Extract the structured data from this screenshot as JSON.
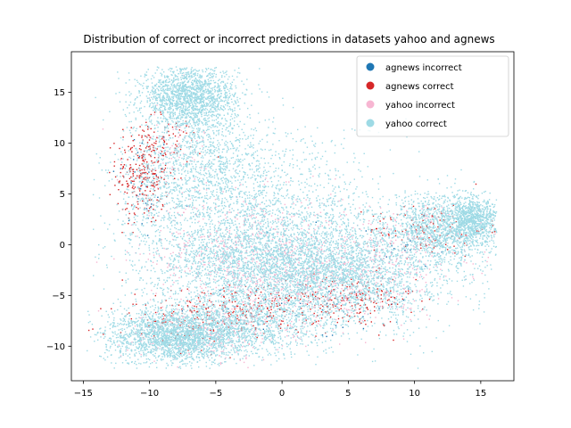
{
  "chart_data": {
    "type": "scatter",
    "title": "Distribution of correct or incorrect predictions in datasets yahoo and agnews",
    "xlabel": "",
    "ylabel": "",
    "xlim": [
      -15.9,
      17.5
    ],
    "ylim": [
      -13.4,
      19.0
    ],
    "xticks": [
      -15,
      -10,
      -5,
      0,
      5,
      10,
      15
    ],
    "yticks": [
      -10,
      -5,
      0,
      5,
      10,
      15
    ],
    "grid": false,
    "legend_position": "top-right",
    "series": [
      {
        "name": "agnews incorrect",
        "color": "#1f77b4",
        "clusters": [
          {
            "cx": -10.5,
            "cy": 6.0,
            "sx": 1.2,
            "sy": 3.0,
            "n": 35
          },
          {
            "cx": 2.0,
            "cy": -6.5,
            "sx": 5.0,
            "sy": 1.5,
            "n": 45
          },
          {
            "cx": 9.0,
            "cy": 0.5,
            "sx": 2.5,
            "sy": 1.5,
            "n": 20
          }
        ]
      },
      {
        "name": "agnews correct",
        "color": "#d62728",
        "clusters": [
          {
            "cx": -10.5,
            "cy": 7.0,
            "sx": 1.0,
            "sy": 2.5,
            "n": 260
          },
          {
            "cx": -9.0,
            "cy": 10.0,
            "sx": 1.5,
            "sy": 1.2,
            "n": 60
          },
          {
            "cx": -2.5,
            "cy": -6.5,
            "sx": 2.8,
            "sy": 1.2,
            "n": 230
          },
          {
            "cx": 5.0,
            "cy": -5.5,
            "sx": 2.5,
            "sy": 1.3,
            "n": 200
          },
          {
            "cx": 11.0,
            "cy": 1.5,
            "sx": 2.2,
            "sy": 1.3,
            "n": 120
          },
          {
            "cx": -8.5,
            "cy": -8.0,
            "sx": 2.2,
            "sy": 1.5,
            "n": 80
          }
        ]
      },
      {
        "name": "yahoo incorrect",
        "color": "#f7b6d2",
        "clusters": [
          {
            "cx": -2.0,
            "cy": -1.0,
            "sx": 4.0,
            "sy": 3.0,
            "n": 700
          },
          {
            "cx": 4.0,
            "cy": -4.0,
            "sx": 4.0,
            "sy": 2.0,
            "n": 400
          },
          {
            "cx": -6.0,
            "cy": -9.0,
            "sx": 3.0,
            "sy": 1.2,
            "n": 250
          },
          {
            "cx": 9.0,
            "cy": 0.0,
            "sx": 3.0,
            "sy": 1.8,
            "n": 200
          },
          {
            "cx": -8.0,
            "cy": 9.0,
            "sx": 2.0,
            "sy": 3.0,
            "n": 80
          }
        ]
      },
      {
        "name": "yahoo correct",
        "color": "#9edae5",
        "clusters": [
          {
            "cx": -7.0,
            "cy": 14.5,
            "sx": 1.8,
            "sy": 1.5,
            "n": 1700
          },
          {
            "cx": -6.0,
            "cy": 8.0,
            "sx": 2.5,
            "sy": 3.0,
            "n": 1000
          },
          {
            "cx": -10.0,
            "cy": 5.0,
            "sx": 1.5,
            "sy": 3.0,
            "n": 300
          },
          {
            "cx": 0.0,
            "cy": 6.0,
            "sx": 4.0,
            "sy": 3.0,
            "n": 500
          },
          {
            "cx": -1.5,
            "cy": -1.5,
            "sx": 4.5,
            "sy": 3.2,
            "n": 3200
          },
          {
            "cx": 5.0,
            "cy": -3.0,
            "sx": 4.0,
            "sy": 2.5,
            "n": 2000
          },
          {
            "cx": 12.0,
            "cy": 1.5,
            "sx": 2.2,
            "sy": 1.8,
            "n": 1400
          },
          {
            "cx": 14.5,
            "cy": 2.5,
            "sx": 0.9,
            "sy": 1.1,
            "n": 700
          },
          {
            "cx": -8.0,
            "cy": -9.0,
            "sx": 2.6,
            "sy": 1.3,
            "n": 2200
          },
          {
            "cx": -3.0,
            "cy": -8.0,
            "sx": 3.0,
            "sy": 1.5,
            "n": 900
          }
        ]
      }
    ]
  }
}
